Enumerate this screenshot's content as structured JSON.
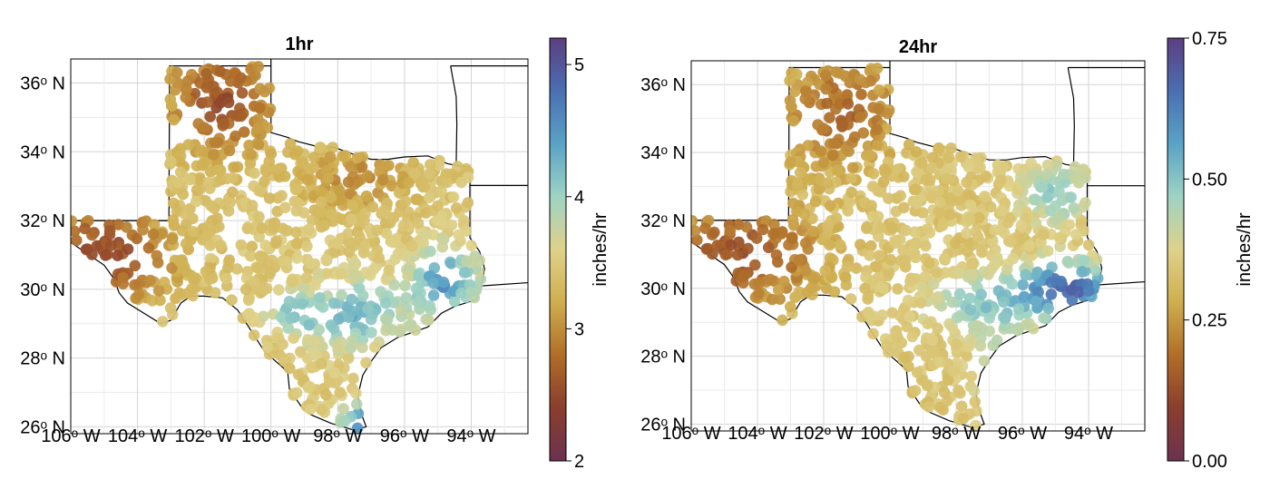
{
  "figure": {
    "panels": [
      {
        "title": "1hr",
        "lat_ticks": [
          "26ᵒ N",
          "28ᵒ N",
          "30ᵒ N",
          "32ᵒ N",
          "34ᵒ N",
          "36ᵒ N"
        ],
        "lon_ticks": [
          "106ᵒ W",
          "104ᵒ W",
          "102ᵒ W",
          "100ᵒ W",
          "98ᵒ W",
          "96ᵒ W",
          "94ᵒ W"
        ],
        "colorbar": {
          "label": "inches/hr",
          "min": 2,
          "max": 5.2,
          "ticks": [
            2,
            3,
            4,
            5
          ],
          "tick_labels": [
            "2",
            "3",
            "4",
            "5"
          ]
        }
      },
      {
        "title": "24hr",
        "lat_ticks": [
          "26ᵒ N",
          "28ᵒ N",
          "30ᵒ N",
          "32ᵒ N",
          "34ᵒ N",
          "36ᵒ N"
        ],
        "lon_ticks": [
          "106ᵒ W",
          "104ᵒ W",
          "102ᵒ W",
          "100ᵒ W",
          "98ᵒ W",
          "96ᵒ W",
          "94ᵒ W"
        ],
        "colorbar": {
          "label": "inches/hr",
          "min": 0,
          "max": 0.75,
          "ticks": [
            0,
            0.25,
            0.5,
            0.75
          ],
          "tick_labels": [
            "0.00",
            "0.25",
            "0.50",
            "0.75"
          ]
        }
      }
    ],
    "map_extent": {
      "lon_min": -106,
      "lon_max": -92.3,
      "lat_min": 25.8,
      "lat_max": 36.7
    },
    "colormap": [
      "#6b3250",
      "#8a3e2d",
      "#b06e28",
      "#cfae4f",
      "#dfd28a",
      "#9ed3c4",
      "#5aa3c6",
      "#4a6fb2",
      "#5d3e80"
    ],
    "grid": true,
    "marker": "circle",
    "description": "Station values of precipitation rate over Texas"
  }
}
